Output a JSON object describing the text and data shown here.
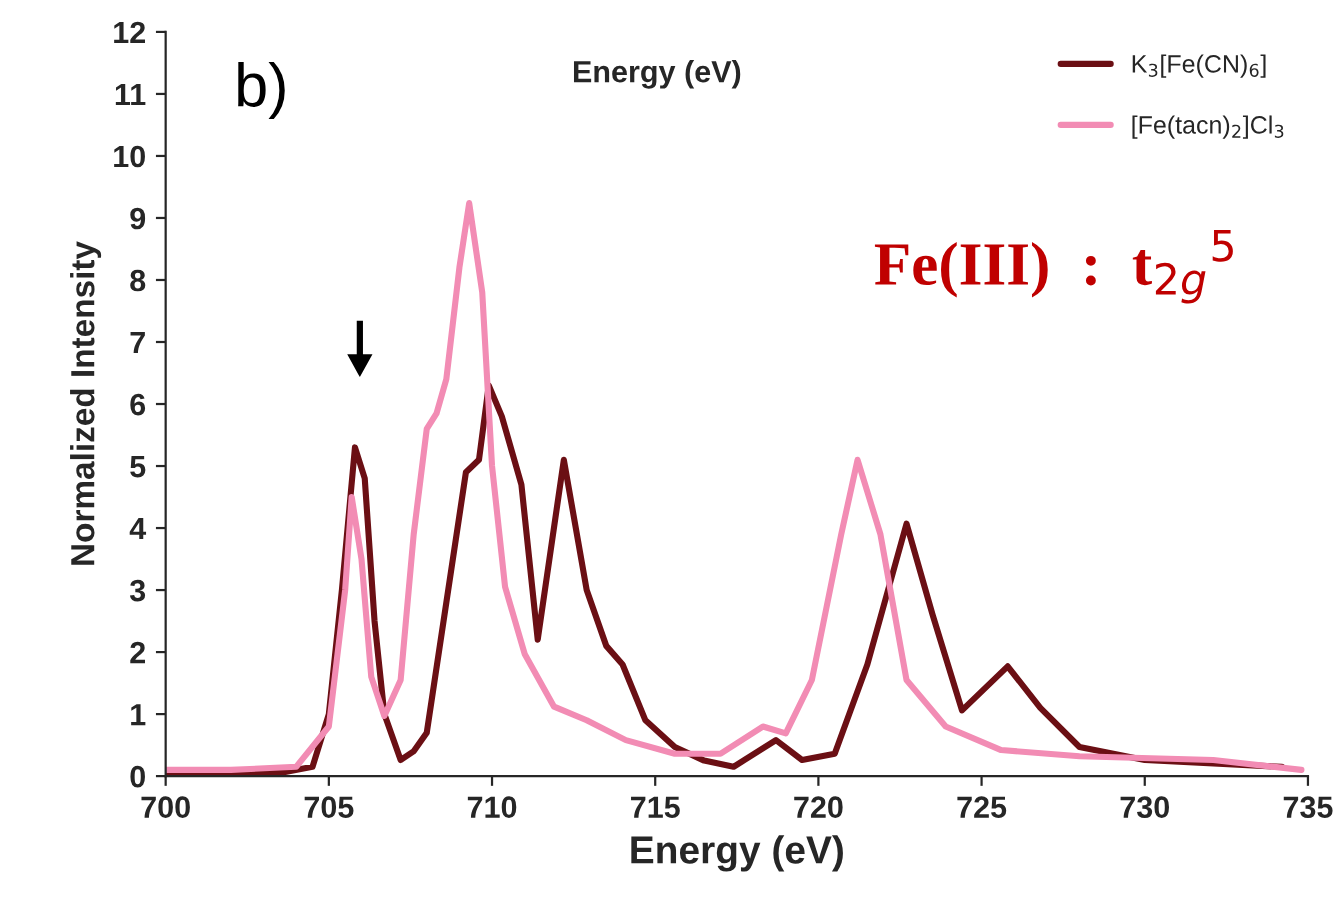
{
  "chart_data": {
    "type": "line",
    "title": "Energy (eV)",
    "xlabel": "Energy (eV)",
    "ylabel": "Normalized Intensity",
    "xlim": [
      700,
      735
    ],
    "xticks": [
      700,
      705,
      710,
      715,
      720,
      725,
      730,
      735
    ],
    "ylim": [
      0,
      12
    ],
    "yticks": [
      0,
      1,
      2,
      3,
      4,
      5,
      6,
      7,
      8,
      9,
      10,
      11,
      12
    ],
    "grid": false,
    "legend": "top right",
    "marker": "none",
    "line_style": "solid",
    "annotations": [
      "b)",
      "Fe(III)  :  t$_{2g}$$^{5}$"
    ],
    "series": [
      {
        "name": "K$_{3}$[Fe(CN)$_{6}$]",
        "color": "#6b0f14",
        "x": [
          700,
          702,
          703.5,
          704.5,
          705,
          705.4,
          705.8,
          706.1,
          706.4,
          706.7,
          707.2,
          707.6,
          708.0,
          708.6,
          709.2,
          709.6,
          709.9,
          710.3,
          710.9,
          711.4,
          712.2,
          712.9,
          713.5,
          714.0,
          714.7,
          715.6,
          716.5,
          717.4,
          718.7,
          719.5,
          720.5,
          721.5,
          722.7,
          723.5,
          724.4,
          725.8,
          726.8,
          728.0,
          730.0,
          734.2
        ],
        "values": [
          0.05,
          0.05,
          0.05,
          0.15,
          1.0,
          3.0,
          5.3,
          4.8,
          2.5,
          1.0,
          0.26,
          0.4,
          0.7,
          2.8,
          4.9,
          5.1,
          6.3,
          5.8,
          4.7,
          2.2,
          5.1,
          3.0,
          2.1,
          1.8,
          0.9,
          0.47,
          0.25,
          0.15,
          0.58,
          0.26,
          0.36,
          1.8,
          4.07,
          2.6,
          1.06,
          1.77,
          1.1,
          0.47,
          0.26,
          0.15
        ]
      },
      {
        "name": "[Fe(tacn)$_{2}$]Cl$_{3}$",
        "color": "#f28cb4",
        "x": [
          700,
          702,
          704,
          705,
          705.5,
          705.7,
          706.0,
          706.3,
          706.7,
          707.2,
          707.6,
          708.0,
          708.3,
          708.6,
          709.0,
          709.3,
          709.7,
          710.0,
          710.4,
          711.0,
          711.9,
          712.9,
          714.1,
          715.6,
          717.0,
          718.3,
          719.0,
          719.8,
          720.7,
          721.2,
          721.9,
          722.7,
          723.9,
          725.6,
          728.0,
          732.1,
          734.8
        ],
        "values": [
          0.1,
          0.1,
          0.15,
          0.8,
          3.0,
          4.5,
          3.5,
          1.6,
          0.97,
          1.55,
          3.9,
          5.6,
          5.85,
          6.4,
          8.2,
          9.24,
          7.8,
          5.0,
          3.05,
          1.97,
          1.12,
          0.9,
          0.58,
          0.36,
          0.36,
          0.8,
          0.69,
          1.55,
          3.9,
          5.1,
          3.9,
          1.55,
          0.8,
          0.42,
          0.32,
          0.26,
          0.1
        ]
      }
    ]
  }
}
